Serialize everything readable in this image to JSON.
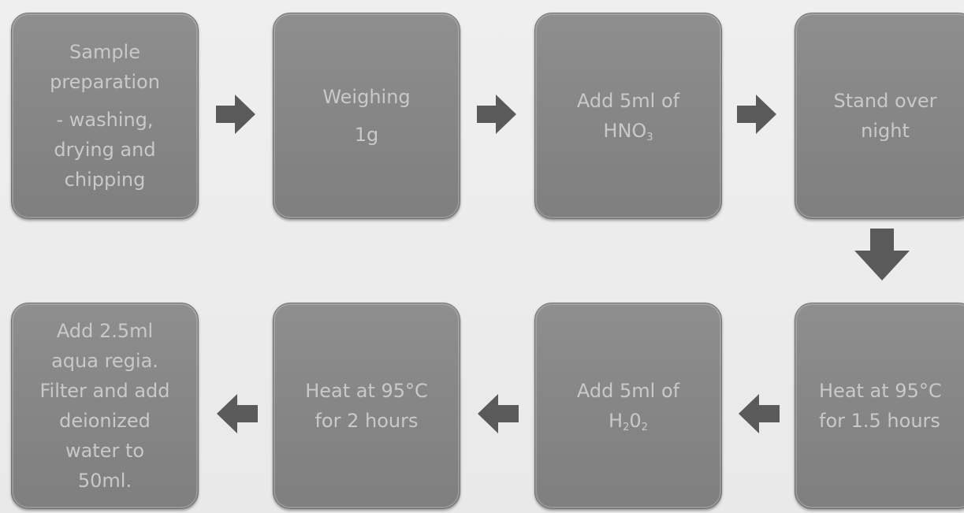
{
  "steps": {
    "s1": {
      "lines": [
        "Sample",
        "preparation",
        "- washing,",
        "drying and",
        "chipping"
      ]
    },
    "s2": {
      "l1": "Weighing",
      "l2": "1g"
    },
    "s3": {
      "l1": "Add 5ml of",
      "l2_main": "HNO",
      "l2_sub": "3"
    },
    "s4": {
      "l1": "Stand over",
      "l2": "night"
    },
    "s5": {
      "l1": "Heat at 95°C",
      "l2": "for 1.5 hours"
    },
    "s6": {
      "l1": "Add 5ml of",
      "l2_a": "H",
      "l2_sub1": "2",
      "l2_b": "0",
      "l2_sub2": "2"
    },
    "s7": {
      "l1": "Heat at 95°C",
      "l2": "for 2 hours"
    },
    "s8": {
      "lines": [
        "Add 2.5ml",
        "aqua regia.",
        "Filter and add",
        "deionized",
        "water to",
        "50ml."
      ]
    }
  },
  "colors": {
    "box": "#868686",
    "text": "#c9c9c9",
    "arrow": "#5a5a5a"
  }
}
